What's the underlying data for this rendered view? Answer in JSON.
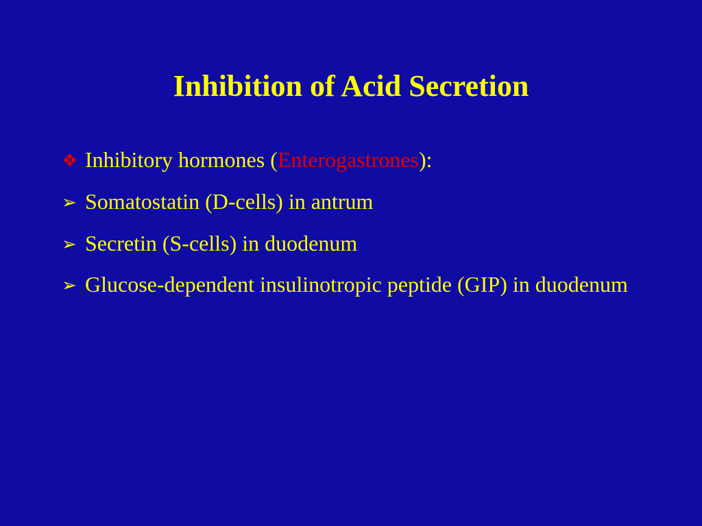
{
  "colors": {
    "background": "#0f0ba3",
    "title": "#ffff00",
    "body_text": "#ffff00",
    "accent_red": "#e00000"
  },
  "typography": {
    "title_fontsize": 44,
    "body_fontsize": 32,
    "font_family": "Garamond, Georgia, Times New Roman, serif"
  },
  "title": "Inhibition of Acid Secretion",
  "bullets": {
    "header": {
      "icon": "❖",
      "icon_color": "#e00000",
      "prefix": "Inhibitory hormones (",
      "highlight": "Enterogastrones",
      "suffix": "):"
    },
    "items": [
      {
        "icon": "➢",
        "text": "Somatostatin (D-cells) in antrum"
      },
      {
        "icon": "➢",
        "text": "Secretin (S-cells) in duodenum"
      },
      {
        "icon": "➢",
        "text": "Glucose-dependent insulinotropic peptide (GIP) in duodenum"
      }
    ]
  }
}
